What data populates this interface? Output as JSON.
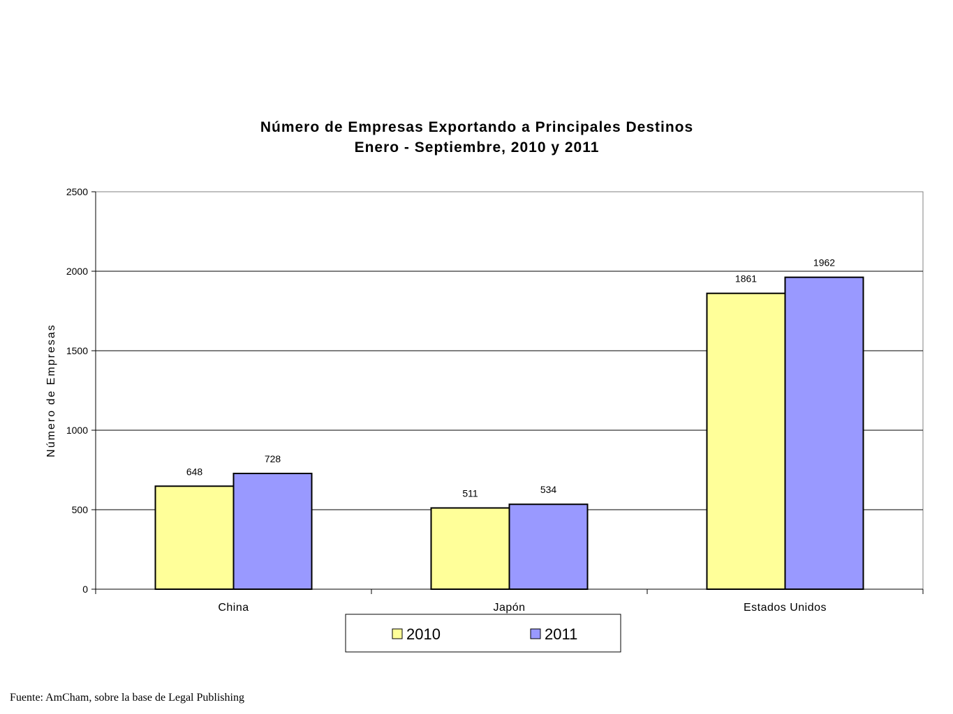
{
  "chart_data": {
    "type": "bar",
    "title": "Número de Empresas Exportando a Principales Destinos",
    "subtitle": "Enero - Septiembre, 2010 y 2011",
    "xlabel": "",
    "ylabel": "Número de Empresas",
    "ylim": [
      0,
      2500
    ],
    "yticks": [
      0,
      500,
      1000,
      1500,
      2000,
      2500
    ],
    "grid": true,
    "legend_position": "bottom",
    "categories": [
      "China",
      "Japón",
      "Estados Unidos"
    ],
    "series": [
      {
        "name": "2010",
        "color": "#FFFF99",
        "values": [
          648,
          511,
          1861
        ]
      },
      {
        "name": "2011",
        "color": "#9999FF",
        "values": [
          728,
          534,
          1962
        ]
      }
    ]
  },
  "footer": {
    "source": "Fuente: AmCham, sobre la base de Legal Publishing"
  }
}
